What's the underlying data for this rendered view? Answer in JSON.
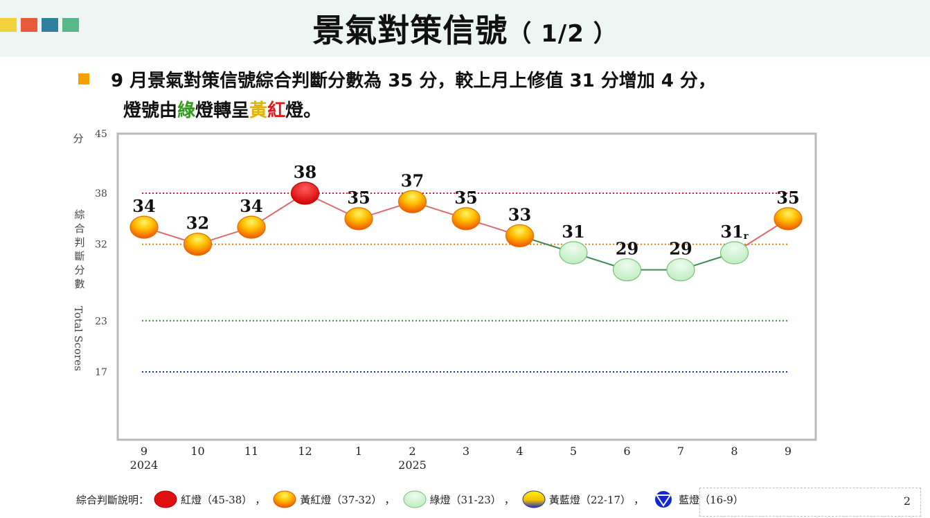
{
  "header": {
    "title": "景氣對策信號",
    "title_suffix": "（ 1/2 ）",
    "colors": [
      "#f2d23c",
      "#ea5a3c",
      "#2f7f9f",
      "#58b88a"
    ]
  },
  "summary": {
    "line1": "9 月景氣對策信號綜合判斷分數為 35 分，較上月上修值 31 分增加 4 分，",
    "line2_prefix": "燈號由",
    "line2_green": "綠",
    "line2_mid": "燈轉呈",
    "line2_yellow": "黃",
    "line2_red": "紅",
    "line2_suffix": "燈。"
  },
  "chart_data": {
    "type": "line",
    "categories": [
      "9",
      "10",
      "11",
      "12",
      "1",
      "2",
      "3",
      "4",
      "5",
      "6",
      "7",
      "8",
      "9"
    ],
    "year_labels": [
      {
        "index": 0,
        "label": "2024"
      },
      {
        "index": 5,
        "label": "2025"
      }
    ],
    "values": [
      34,
      32,
      34,
      38,
      35,
      37,
      35,
      33,
      31,
      29,
      29,
      31,
      35
    ],
    "value_labels": [
      "34",
      "32",
      "34",
      "38",
      "35",
      "37",
      "35",
      "33",
      "31",
      "29",
      "29",
      "31",
      "35"
    ],
    "revised_marker": {
      "index": 11,
      "label": "r"
    },
    "lights": [
      "yellow-red",
      "yellow-red",
      "yellow-red",
      "red",
      "yellow-red",
      "yellow-red",
      "yellow-red",
      "yellow-red",
      "green",
      "green",
      "green",
      "green",
      "yellow-red"
    ],
    "y_ticks": [
      45,
      38,
      32,
      23,
      17
    ],
    "ylim": [
      10,
      45
    ],
    "y_unit": "分",
    "ylabel_cn": "綜合判斷分數",
    "ylabel_en": "Total Scores",
    "thresholds": [
      {
        "value": 38,
        "color": "#e02020"
      },
      {
        "value": 32,
        "color": "#e08020"
      },
      {
        "value": 23,
        "color": "#2f9a2f"
      },
      {
        "value": 17,
        "color": "#1a2fa8"
      }
    ],
    "light_colors": {
      "red": "#e01010",
      "yellow-red": "#f07000",
      "green": "#c8f0c8",
      "yellow-blue": "#f0d000",
      "blue": "#1428d0"
    },
    "grid": false
  },
  "legend": {
    "title": "綜合判斷說明：",
    "items": [
      {
        "label": "紅燈（45-38）",
        "type": "red",
        "sep": "，"
      },
      {
        "label": "黃紅燈（37-32）",
        "type": "yellow-red",
        "sep": "，"
      },
      {
        "label": "綠燈（31-23）",
        "type": "green",
        "sep": "，"
      },
      {
        "label": "黃藍燈（22-17）",
        "type": "yellow-blue",
        "sep": "，"
      },
      {
        "label": "藍燈（16-9）",
        "type": "blue",
        "sep": ""
      }
    ]
  },
  "page_number": "2"
}
